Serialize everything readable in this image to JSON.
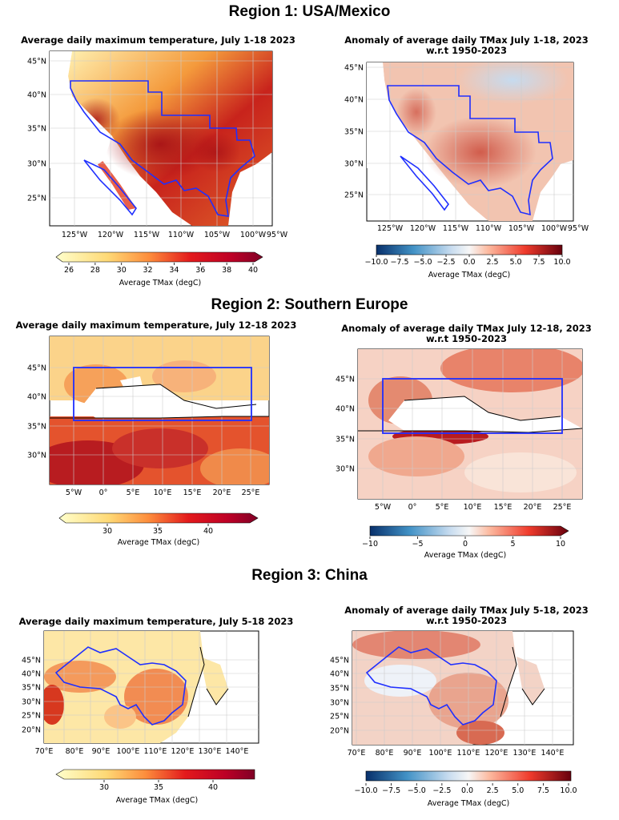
{
  "regions": [
    {
      "title": "Region 1: USA/Mexico",
      "avg": {
        "title": "Average daily maximum temperature, July 1-18 2023",
        "lat_ticks": [
          "45°N",
          "40°N",
          "35°N",
          "30°N",
          "25°N"
        ],
        "lon_ticks": [
          "125°W",
          "120°W",
          "115°W",
          "110°W",
          "105°W",
          "100°W",
          "95°W"
        ],
        "colorbar": {
          "ticks": [
            "26",
            "28",
            "30",
            "32",
            "34",
            "36",
            "38",
            "40"
          ],
          "label": "Average TMax (degC)"
        }
      },
      "anom": {
        "title_line1": "Anomaly of average daily TMax July 1-18, 2023",
        "title_line2": "w.r.t 1950-2023",
        "lat_ticks": [
          "45°N",
          "40°N",
          "35°N",
          "30°N",
          "25°N"
        ],
        "lon_ticks": [
          "125°W",
          "120°W",
          "115°W",
          "110°W",
          "105°W",
          "100°W",
          "95°W"
        ],
        "colorbar": {
          "ticks": [
            "−10.0",
            "−7.5",
            "−5.0",
            "−2.5",
            "0.0",
            "2.5",
            "5.0",
            "7.5",
            "10.0"
          ],
          "label": "Average TMax (degC)"
        }
      }
    },
    {
      "title": "Region 2: Southern Europe",
      "avg": {
        "title": "Average daily maximum temperature, July 12-18 2023",
        "lat_ticks": [
          "45°N",
          "40°N",
          "35°N",
          "30°N"
        ],
        "lon_ticks": [
          "5°W",
          "0°",
          "5°E",
          "10°E",
          "15°E",
          "20°E",
          "25°E"
        ],
        "colorbar": {
          "ticks": [
            "30",
            "35",
            "40"
          ],
          "label": "Average TMax (degC)"
        }
      },
      "anom": {
        "title_line1": "Anomaly of average daily TMax July 12-18, 2023",
        "title_line2": "w.r.t 1950-2023",
        "lat_ticks": [
          "45°N",
          "40°N",
          "35°N",
          "30°N"
        ],
        "lon_ticks": [
          "5°W",
          "0°",
          "5°E",
          "10°E",
          "15°E",
          "20°E",
          "25°E"
        ],
        "colorbar": {
          "ticks": [
            "−10",
            "−5",
            "0",
            "5",
            "10"
          ],
          "label": "Average TMax (degC)"
        }
      }
    },
    {
      "title": "Region 3: China",
      "avg": {
        "title": "Average daily maximum temperature, July 5-18 2023",
        "lat_ticks": [
          "45°N",
          "40°N",
          "35°N",
          "30°N",
          "25°N",
          "20°N"
        ],
        "lon_ticks": [
          "70°E",
          "80°E",
          "90°E",
          "100°E",
          "110°E",
          "120°E",
          "130°E",
          "140°E"
        ],
        "colorbar": {
          "ticks": [
            "30",
            "35",
            "40"
          ],
          "label": "Average TMax (degC)"
        }
      },
      "anom": {
        "title_line1": "Anomaly of average daily TMax July 5-18, 2023",
        "title_line2": "w.r.t 1950-2023",
        "lat_ticks": [
          "45°N",
          "40°N",
          "35°N",
          "30°N",
          "25°N",
          "20°N"
        ],
        "lon_ticks": [
          "70°E",
          "80°E",
          "90°E",
          "100°E",
          "110°E",
          "120°E",
          "130°E",
          "140°E"
        ],
        "colorbar": {
          "ticks": [
            "−10.0",
            "−7.5",
            "−5.0",
            "−2.5",
            "0.0",
            "2.5",
            "5.0",
            "7.5",
            "10.0"
          ],
          "label": "Average TMax (degC)"
        }
      }
    }
  ],
  "colors": {
    "heat_low": "#ffffcc",
    "heat_mid": "#f03b20",
    "heat_high": "#800026",
    "anom_cold": "#08306b",
    "anom_zero": "#f7f7f7",
    "anom_warm": "#67000d",
    "region_outline": "#0000ff"
  }
}
